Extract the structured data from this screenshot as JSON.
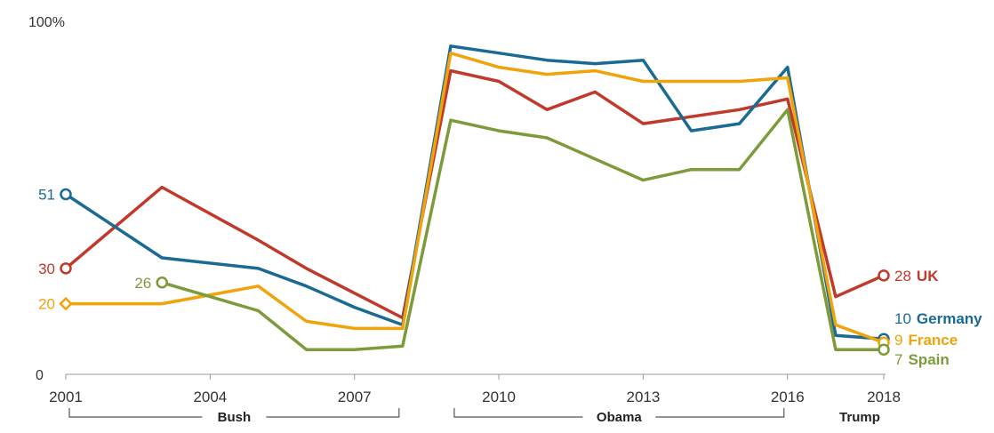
{
  "chart_data": {
    "type": "line",
    "title": "",
    "xlabel": "",
    "ylabel": "",
    "ylim": [
      0,
      100
    ],
    "xlim": [
      2001,
      2018
    ],
    "y_top_label": "100%",
    "y_zero_label": "0",
    "x_ticks": [
      "2001",
      "2004",
      "2007",
      "2010",
      "2013",
      "2016",
      "2018"
    ],
    "grid": false,
    "eras": [
      {
        "label": "Bush",
        "start": 2001,
        "end": 2008
      },
      {
        "label": "Obama",
        "start": 2009,
        "end": 2016
      },
      {
        "label": "Trump",
        "start": 2017,
        "end": 2018
      }
    ],
    "series": [
      {
        "name": "UK",
        "color": "#c0392b",
        "x": [
          2001,
          2003,
          2005,
          2006,
          2007,
          2008,
          2009,
          2010,
          2011,
          2012,
          2013,
          2014,
          2015,
          2016,
          2017,
          2018
        ],
        "y": [
          30,
          53,
          38,
          30,
          23,
          16,
          86,
          83,
          75,
          80,
          71,
          73,
          75,
          78,
          22,
          28
        ],
        "start_label": "30",
        "end_label": "28",
        "start_marker": "circle"
      },
      {
        "name": "Germany",
        "color": "#1a6a93",
        "x": [
          2001,
          2003,
          2005,
          2006,
          2007,
          2008,
          2009,
          2010,
          2011,
          2012,
          2013,
          2014,
          2015,
          2016,
          2017,
          2018
        ],
        "y": [
          51,
          33,
          30,
          25,
          19,
          14,
          93,
          91,
          89,
          88,
          89,
          69,
          71,
          87,
          11,
          10
        ],
        "start_label": "51",
        "end_label": "10",
        "start_marker": "circle"
      },
      {
        "name": "France",
        "color": "#f0a30a",
        "x": [
          2001,
          2003,
          2005,
          2006,
          2007,
          2008,
          2009,
          2010,
          2011,
          2012,
          2013,
          2014,
          2015,
          2016,
          2017,
          2018
        ],
        "y": [
          20,
          20,
          25,
          15,
          13,
          13,
          91,
          87,
          85,
          86,
          83,
          83,
          83,
          84,
          14,
          9
        ],
        "start_label": "20",
        "end_label": "9",
        "start_marker": "diamond"
      },
      {
        "name": "Spain",
        "color": "#7d9b3a",
        "x": [
          2003,
          2005,
          2006,
          2007,
          2008,
          2009,
          2010,
          2011,
          2012,
          2013,
          2014,
          2015,
          2016,
          2017,
          2018
        ],
        "y": [
          26,
          18,
          7,
          7,
          8,
          72,
          69,
          67,
          61,
          55,
          58,
          58,
          75,
          7,
          7
        ],
        "start_label": "26",
        "end_label": "7",
        "start_marker": "circle"
      }
    ]
  }
}
